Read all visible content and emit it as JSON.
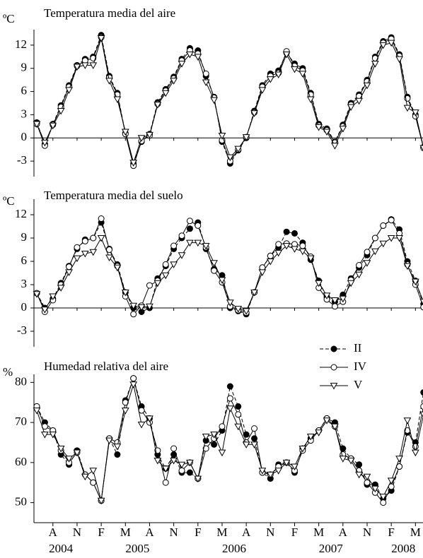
{
  "chart_data": [
    {
      "type": "line",
      "title": "Temperatura media del aire",
      "ylabel": "ºC",
      "ylim": [
        -5,
        14
      ],
      "yticks": [
        -3,
        0,
        3,
        6,
        9,
        12
      ],
      "zero_line": true,
      "series": [
        {
          "name": "II",
          "color": "#000000",
          "marker": "filled-circle",
          "dash": true,
          "values": [
            2.0,
            -0.8,
            1.8,
            4.2,
            6.8,
            9.4,
            10.2,
            10.5,
            13.3,
            8.0,
            5.8,
            0.6,
            -3.3,
            -0.5,
            0.5,
            4.6,
            6.3,
            7.9,
            10.2,
            11.6,
            11.3,
            8.0,
            5.3,
            -0.5,
            -3.3,
            -1.6,
            0.0,
            3.5,
            6.8,
            8.3,
            8.7,
            11.0,
            9.6,
            9.0,
            5.8,
            1.8,
            1.2,
            -0.5,
            1.7,
            4.5,
            5.6,
            7.5,
            10.5,
            12.5,
            13.0,
            10.8,
            5.3,
            3.0,
            -1.2
          ]
        },
        {
          "name": "IV",
          "color": "#000000",
          "marker": "open-circle",
          "dash": false,
          "values": [
            1.8,
            -1.0,
            1.7,
            4.0,
            6.6,
            9.3,
            10.0,
            10.3,
            13.0,
            7.8,
            5.6,
            0.5,
            -3.6,
            -0.4,
            0.3,
            4.4,
            6.1,
            7.7,
            10.0,
            11.3,
            10.9,
            8.3,
            5.2,
            -0.3,
            -3.0,
            -1.5,
            0.1,
            3.3,
            6.6,
            8.0,
            8.4,
            11.2,
            9.3,
            8.7,
            5.6,
            1.6,
            1.0,
            -0.6,
            1.5,
            4.3,
            5.4,
            7.3,
            10.3,
            12.3,
            12.8,
            10.6,
            5.1,
            2.8,
            -1.3
          ]
        },
        {
          "name": "V",
          "color": "#000000",
          "marker": "open-triangle-down",
          "dash": false,
          "values": [
            1.8,
            -0.6,
            1.6,
            3.5,
            6.2,
            9.2,
            9.4,
            9.4,
            12.9,
            7.4,
            5.0,
            0.8,
            -3.2,
            0.0,
            0.4,
            4.3,
            5.8,
            7.4,
            9.6,
            10.8,
            10.5,
            7.2,
            4.9,
            0.3,
            -2.5,
            -1.4,
            0.1,
            3.2,
            6.2,
            7.6,
            8.2,
            10.8,
            8.9,
            8.3,
            5.0,
            1.4,
            0.8,
            -1.0,
            1.2,
            4.0,
            4.8,
            6.8,
            9.6,
            12.0,
            12.3,
            10.2,
            3.9,
            3.3,
            -1.3
          ]
        }
      ]
    },
    {
      "type": "line",
      "title": "Temperatura media del suelo",
      "ylabel": "ºC",
      "ylim": [
        -5,
        14
      ],
      "yticks": [
        -3,
        0,
        3,
        6,
        9,
        12
      ],
      "zero_line": true,
      "series": [
        {
          "name": "II",
          "color": "#000000",
          "marker": "filled-circle",
          "dash": true,
          "values": [
            1.9,
            0.0,
            1.2,
            3.2,
            5.4,
            7.6,
            8.8,
            9.0,
            11.0,
            7.6,
            5.6,
            2.0,
            0.0,
            -0.5,
            0.0,
            3.8,
            5.4,
            7.6,
            9.0,
            10.2,
            11.0,
            7.6,
            5.0,
            4.2,
            0.0,
            -0.4,
            -0.8,
            2.0,
            5.2,
            6.7,
            7.8,
            9.8,
            9.6,
            8.4,
            6.2,
            3.5,
            1.4,
            0.8,
            1.7,
            3.8,
            5.2,
            6.8,
            9.0,
            10.6,
            11.4,
            10.1,
            6.0,
            3.5,
            0.5
          ]
        },
        {
          "name": "IV",
          "color": "#000000",
          "marker": "open-circle",
          "dash": false,
          "values": [
            1.9,
            -0.5,
            1.0,
            3.0,
            5.3,
            7.8,
            8.6,
            9.0,
            11.5,
            7.5,
            5.4,
            1.5,
            -0.8,
            0.3,
            2.9,
            3.5,
            5.6,
            8.0,
            9.3,
            11.2,
            10.6,
            7.8,
            4.8,
            3.3,
            0.2,
            -0.3,
            -0.6,
            2.0,
            5.2,
            6.7,
            8.2,
            8.3,
            8.2,
            8.0,
            6.6,
            2.6,
            1.1,
            0.2,
            0.8,
            3.6,
            5.5,
            7.2,
            9.0,
            10.6,
            11.3,
            9.6,
            5.6,
            3.0,
            0.1
          ]
        },
        {
          "name": "V",
          "color": "#000000",
          "marker": "open-triangle-down",
          "dash": false,
          "values": [
            1.8,
            -0.2,
            1.5,
            2.6,
            4.6,
            6.4,
            7.0,
            7.2,
            9.0,
            6.5,
            5.2,
            2.0,
            0.3,
            0.1,
            0.2,
            3.2,
            4.2,
            5.6,
            6.8,
            8.4,
            8.4,
            8.0,
            5.8,
            3.6,
            0.7,
            -0.1,
            -0.4,
            2.0,
            4.6,
            6.0,
            7.1,
            8.0,
            7.6,
            7.3,
            6.4,
            3.2,
            1.6,
            1.0,
            1.2,
            3.2,
            4.3,
            5.8,
            7.3,
            8.3,
            9.0,
            9.0,
            5.4,
            3.4,
            0.8
          ]
        }
      ]
    },
    {
      "type": "line",
      "title": "Humedad relativa del aire",
      "ylabel": "%",
      "ylim": [
        45,
        82
      ],
      "yticks": [
        50,
        60,
        70,
        80
      ],
      "zero_line": false,
      "legend": "upper right",
      "categories": [
        null,
        null,
        "A",
        null,
        null,
        "N",
        null,
        null,
        "F",
        null,
        null,
        "M",
        null,
        null,
        "A",
        null,
        null,
        "N",
        null,
        null,
        "F",
        null,
        null,
        "M",
        null,
        null,
        "A",
        null,
        null,
        "N",
        null,
        null,
        "F",
        null,
        null,
        "M",
        null,
        null,
        "A",
        null,
        null,
        "N",
        null,
        null,
        "F",
        null,
        null,
        "M",
        null
      ],
      "x_groups": [
        {
          "label": "2004",
          "start": 0,
          "end": 6
        },
        {
          "label": "2005",
          "start": 7,
          "end": 18
        },
        {
          "label": "2006",
          "start": 19,
          "end": 30
        },
        {
          "label": "2007",
          "start": 31,
          "end": 42
        },
        {
          "label": "2008",
          "start": 43,
          "end": 48
        }
      ],
      "series": [
        {
          "name": "II",
          "color": "#000000",
          "marker": "filled-circle",
          "dash": true,
          "values": [
            74,
            70,
            68,
            62,
            59.5,
            63,
            57,
            55,
            50.5,
            66,
            62,
            75.5,
            81,
            74,
            71,
            62,
            58.5,
            62,
            57.5,
            57.5,
            56,
            65.5,
            64.5,
            68,
            79,
            74,
            67,
            66,
            57.5,
            56,
            59.5,
            60,
            57.5,
            63.5,
            66,
            68,
            71,
            70,
            63.5,
            61,
            59.5,
            54.5,
            54.5,
            51,
            53,
            59,
            67.5,
            65,
            77.5
          ]
        },
        {
          "name": "IV",
          "color": "#000000",
          "marker": "open-circle",
          "dash": false,
          "values": [
            74,
            69,
            68,
            63,
            60,
            62.5,
            57,
            55,
            50.5,
            66,
            65,
            75,
            81,
            73,
            70,
            63,
            55,
            63.5,
            58,
            60,
            56,
            63.5,
            66,
            69,
            76,
            72,
            65,
            68.5,
            57.5,
            57,
            59,
            60,
            58,
            63,
            65.5,
            68,
            71,
            69,
            62,
            61,
            58,
            55,
            52.5,
            50,
            54,
            59,
            68,
            64,
            74
          ]
        },
        {
          "name": "V",
          "color": "#000000",
          "marker": "open-triangle-down",
          "dash": false,
          "values": [
            73,
            67,
            67,
            63.5,
            61,
            62.5,
            56.5,
            58,
            50.5,
            65.5,
            64,
            73,
            79.5,
            69.5,
            71,
            60.5,
            58.5,
            60.5,
            59.5,
            60,
            56,
            66.5,
            67,
            62.5,
            73.5,
            69,
            64.5,
            64.5,
            58,
            57,
            58,
            60,
            59,
            63.5,
            66.5,
            67.5,
            70.5,
            69,
            61,
            60.5,
            57,
            56.5,
            53.5,
            51.5,
            55.5,
            61,
            70.5,
            62.5,
            72
          ]
        }
      ]
    }
  ]
}
